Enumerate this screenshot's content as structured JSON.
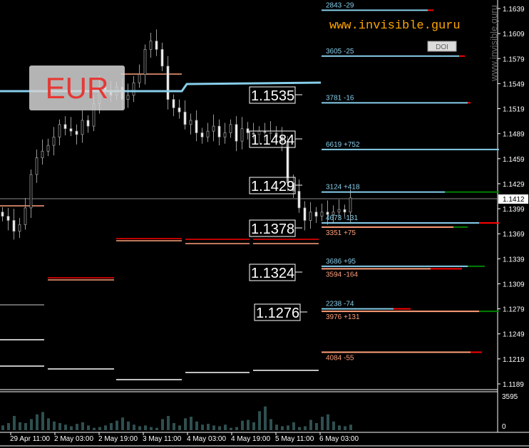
{
  "symbol_badge": "EUR",
  "watermark_url": "www.invisible.guru",
  "vertical_watermark": "www.invisible.guru",
  "doi_button": "DOI",
  "current_price": "1.1412",
  "colors": {
    "background": "#000000",
    "bull_candle": "#000000",
    "bear_candle": "#ffffff",
    "ma_line": "#87ceeb",
    "sell_level": "#ffa07a",
    "profit": "#008000",
    "loss": "#ff0000",
    "volume": "#2f4f4f",
    "watermark": "#ffa500"
  },
  "chart_data": {
    "type": "candlestick",
    "y_axis_ticks": [
      "1.1639",
      "1.1609",
      "1.1579",
      "1.1549",
      "1.1519",
      "1.1489",
      "1.1459",
      "1.1429",
      "1.1399",
      "1.1369",
      "1.1339",
      "1.1309",
      "1.1279",
      "1.1249",
      "1.1219",
      "1.1189"
    ],
    "ylim": [
      1.1189,
      1.1639
    ],
    "x_axis_ticks": [
      "29 Apr 11:00",
      "2 May 03:00",
      "2 May 19:00",
      "3 May 11:00",
      "4 May 03:00",
      "4 May 19:00",
      "5 May 11:00",
      "6 May 03:00"
    ],
    "closes": [
      1.139,
      1.1385,
      1.1372,
      1.138,
      1.14,
      1.144,
      1.146,
      1.1468,
      1.1475,
      1.1485,
      1.15,
      1.1495,
      1.1492,
      1.1488,
      1.1505,
      1.1498,
      1.1525,
      1.1545,
      1.154,
      1.1535,
      1.1545,
      1.153,
      1.1535,
      1.155,
      1.156,
      1.159,
      1.16,
      1.159,
      1.157,
      1.153,
      1.152,
      1.1515,
      1.15,
      1.1505,
      1.149,
      1.1485,
      1.1492,
      1.1498,
      1.1485,
      1.149,
      1.15,
      1.148,
      1.1495,
      1.149,
      1.1488,
      1.1492,
      1.149,
      1.149,
      1.1485,
      1.148,
      1.143,
      1.142,
      1.14,
      1.1385,
      1.1395,
      1.139,
      1.1395,
      1.1392,
      1.1395,
      1.1398,
      1.1395,
      1.1412
    ],
    "volume": {
      "max_label": "3595",
      "min_label": "0",
      "values": [
        600,
        900,
        1800,
        1000,
        900,
        1400,
        2000,
        2300,
        1500,
        1100,
        900,
        700,
        500,
        800,
        1000,
        600,
        300,
        400,
        600,
        900,
        1200,
        1600,
        1100,
        700,
        500,
        600,
        400,
        300,
        1400,
        1800,
        900,
        600,
        1500,
        1700,
        1100,
        700,
        800,
        600,
        500,
        700,
        300,
        400,
        1200,
        1300,
        1000,
        2400,
        3000,
        1400,
        700,
        500,
        600,
        1000,
        400,
        500,
        1300,
        900,
        1700,
        2000,
        1100,
        600,
        500,
        700
      ],
      "color": "#2f4f4f"
    },
    "level_boxes": [
      "1.1535",
      "1.1484",
      "1.1429",
      "1.1378",
      "1.1324",
      "1.1276"
    ],
    "order_levels": [
      {
        "label": "2843 -29",
        "side": "buy",
        "price": 1.1637,
        "result": "loss"
      },
      {
        "label": "3605 -25",
        "side": "buy",
        "price": 1.1582,
        "result": "loss"
      },
      {
        "label": "3781 -16",
        "side": "buy",
        "price": 1.1526,
        "result": "loss"
      },
      {
        "label": "6619 +752",
        "side": "buy",
        "price": 1.147,
        "result": "profit"
      },
      {
        "label": "3124 +418",
        "side": "buy",
        "price": 1.1419,
        "result": "profit"
      },
      {
        "label": "4673 -131",
        "side": "buy",
        "price": 1.1382,
        "result": "loss"
      },
      {
        "label": "3351 +75",
        "side": "sell",
        "price": 1.1377,
        "result": "profit"
      },
      {
        "label": "3686 +95",
        "side": "buy",
        "price": 1.133,
        "result": "profit"
      },
      {
        "label": "3594 -164",
        "side": "sell",
        "price": 1.1327,
        "result": "loss"
      },
      {
        "label": "2238 -74",
        "side": "buy",
        "price": 1.1279,
        "result": "loss"
      },
      {
        "label": "3976 +131",
        "side": "sell",
        "price": 1.1276,
        "result": "profit"
      },
      {
        "label": "4084 -55",
        "side": "sell",
        "price": 1.1227,
        "result": "loss"
      }
    ]
  }
}
